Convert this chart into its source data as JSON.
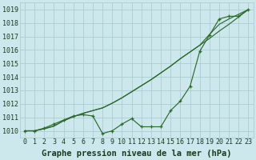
{
  "xlabel": "Graphe pression niveau de la mer (hPa)",
  "x": [
    0,
    1,
    2,
    3,
    4,
    5,
    6,
    7,
    8,
    9,
    10,
    11,
    12,
    13,
    14,
    15,
    16,
    17,
    18,
    19,
    20,
    21,
    22,
    23
  ],
  "y_actual": [
    1010.0,
    1010.0,
    1010.2,
    1010.5,
    1010.8,
    1011.1,
    1011.2,
    1011.1,
    1009.8,
    1010.0,
    1010.5,
    1010.9,
    1010.3,
    1010.3,
    1010.3,
    1011.5,
    1012.2,
    1013.3,
    1015.9,
    1017.1,
    1018.3,
    1018.5,
    1018.5,
    1019.0
  ],
  "y_line1": [
    1010.0,
    1010.0,
    1010.15,
    1010.35,
    1010.75,
    1011.05,
    1011.3,
    1011.5,
    1011.7,
    1012.05,
    1012.45,
    1012.9,
    1013.35,
    1013.8,
    1014.3,
    1014.8,
    1015.35,
    1015.85,
    1016.35,
    1016.85,
    1017.4,
    1017.9,
    1018.45,
    1019.0
  ],
  "y_line2": [
    1010.0,
    1010.0,
    1010.15,
    1010.35,
    1010.75,
    1011.05,
    1011.3,
    1011.5,
    1011.7,
    1012.05,
    1012.45,
    1012.9,
    1013.35,
    1013.8,
    1014.3,
    1014.8,
    1015.35,
    1015.85,
    1016.35,
    1017.15,
    1017.9,
    1018.3,
    1018.65,
    1019.0
  ],
  "ylim": [
    1009.5,
    1019.5
  ],
  "yticks": [
    1010,
    1011,
    1012,
    1013,
    1014,
    1015,
    1016,
    1017,
    1018,
    1019
  ],
  "xticks": [
    0,
    1,
    2,
    3,
    4,
    5,
    6,
    7,
    8,
    9,
    10,
    11,
    12,
    13,
    14,
    15,
    16,
    17,
    18,
    19,
    20,
    21,
    22,
    23
  ],
  "line_color": "#2d6a2d",
  "bg_color": "#cce8ec",
  "grid_color": "#a8c8cc",
  "text_color": "#1a3a1a",
  "xlabel_fontsize": 7.5,
  "tick_fontsize": 6.0
}
